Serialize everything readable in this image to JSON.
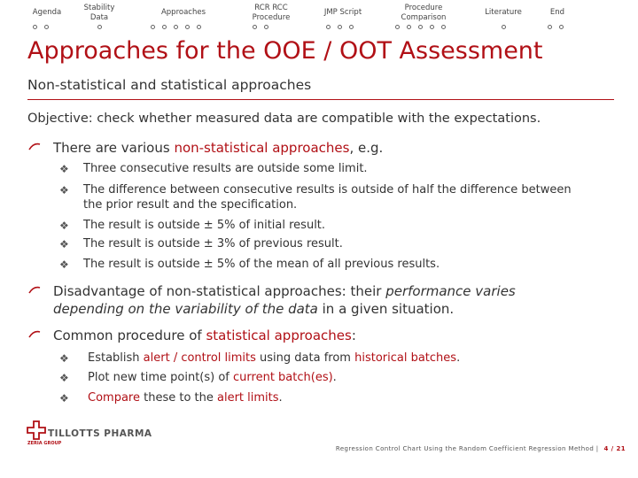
{
  "nav": {
    "items": [
      {
        "label": "Agenda",
        "dots": 2
      },
      {
        "label": "Stability Data",
        "dots": 1
      },
      {
        "label": "Approaches",
        "dots": 5
      },
      {
        "label": "RCR RCC Procedure",
        "dots": 2
      },
      {
        "label": "JMP Script",
        "dots": 3
      },
      {
        "label": "Procedure Comparison",
        "dots": 5
      },
      {
        "label": "Literature",
        "dots": 1
      },
      {
        "label": "End",
        "dots": 2
      }
    ]
  },
  "title": "Approaches for the OOE / OOT Assessment",
  "subtitle": "Non-statistical and statistical approaches",
  "objective": "Objective: check whether measured data are compatible with the expectations.",
  "bullet_various": {
    "pre": "There are various ",
    "hl": "non-statistical approaches",
    "post": ", e.g."
  },
  "sub_items_1": [
    "Three consecutive results are outside some limit.",
    "The difference between consecutive results is outside of half the difference between",
    "the prior result and the specification.",
    "The result is outside ± 5% of initial result.",
    "The result is outside ± 3% of previous result.",
    "The result is outside ± 5% of the mean of all previous results."
  ],
  "bullet_disadvantage": {
    "pre": "Disadvantage of non-statistical approaches: their ",
    "em1": "performance varies",
    "em2": "depending on the variability of the data",
    "post": " in a given situation."
  },
  "bullet_common": {
    "pre": "Common procedure of ",
    "hl": "statistical approaches",
    "post": ":"
  },
  "sub_items_2": [
    {
      "pre": "Establish ",
      "hl": "alert / control limits",
      "mid": " using data from ",
      "hl2": "historical batches",
      "post": "."
    },
    {
      "pre": "Plot new time point(s) of ",
      "hl": "current batch(es)",
      "post": "."
    },
    {
      "hl": "Compare",
      "mid": " these to the ",
      "hl2": "alert limits",
      "post": "."
    }
  ],
  "logo": {
    "name": "TILLOTTS PHARMA",
    "group": "ZERIA GROUP"
  },
  "footer": {
    "text": "Regression Control Chart Using the Random Coefficient Regression Method |",
    "page": "4 / 21"
  },
  "colors": {
    "accent": "#b11016"
  }
}
